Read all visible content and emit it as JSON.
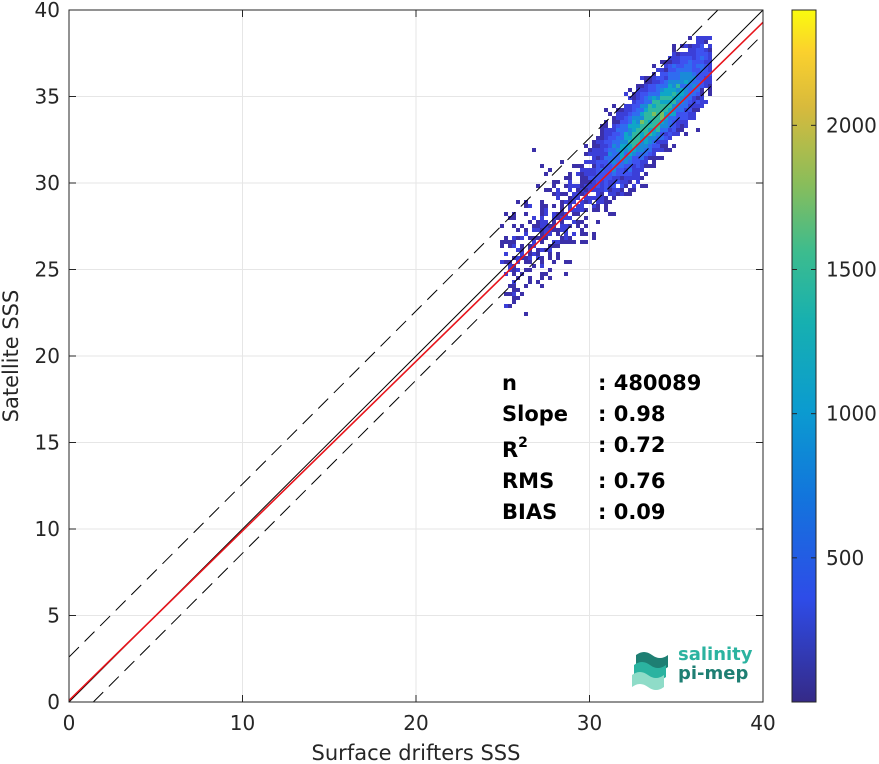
{
  "chart_data": {
    "type": "heatmap",
    "xlabel": "Surface drifters SSS",
    "ylabel": "Satellite SSS",
    "xlim": [
      0,
      40
    ],
    "ylim": [
      0,
      40
    ],
    "x_ticks": [
      "0",
      "10",
      "20",
      "30",
      "40"
    ],
    "y_ticks": [
      "0",
      "5",
      "10",
      "15",
      "20",
      "25",
      "30",
      "35",
      "40"
    ],
    "grid": true,
    "colorbar": {
      "range": [
        0,
        2400
      ],
      "ticks": [
        "500",
        "1000",
        "1500",
        "2000"
      ],
      "colormap": "parula"
    },
    "density_peak": {
      "x": 33.7,
      "y": 33.7,
      "count": 2400
    },
    "density_extent": {
      "x": [
        25,
        37
      ],
      "y": [
        22,
        38.5
      ]
    },
    "lines": [
      {
        "name": "identity",
        "style": "solid",
        "color": "#000000",
        "x": [
          0,
          40
        ],
        "y": [
          0,
          40
        ]
      },
      {
        "name": "fit",
        "style": "solid",
        "color": "#e8141b",
        "x": [
          0,
          40
        ],
        "y": [
          0.09,
          39.29
        ]
      },
      {
        "name": "upper-bound",
        "style": "dashed",
        "color": "#000000",
        "x": [
          0,
          40
        ],
        "y": [
          2.6,
          42.6
        ]
      },
      {
        "name": "lower-bound",
        "style": "dashed",
        "color": "#000000",
        "x": [
          1.4,
          40
        ],
        "y": [
          0,
          38.6
        ]
      }
    ]
  },
  "stats": [
    {
      "label": "n",
      "sup": "",
      "value": ": 480089"
    },
    {
      "label": "Slope",
      "sup": "",
      "value": ": 0.98"
    },
    {
      "label": "R",
      "sup": "2",
      "value": ": 0.72"
    },
    {
      "label": "RMS",
      "sup": "",
      "value": ": 0.76"
    },
    {
      "label": "BIAS",
      "sup": "",
      "value": ": 0.09"
    }
  ],
  "logo": {
    "line1": "salinity",
    "line2": "pi-mep"
  },
  "colors": {
    "teal": "#2bb3a0",
    "dark_teal": "#1e7f73",
    "fit_line": "#e8141b"
  }
}
